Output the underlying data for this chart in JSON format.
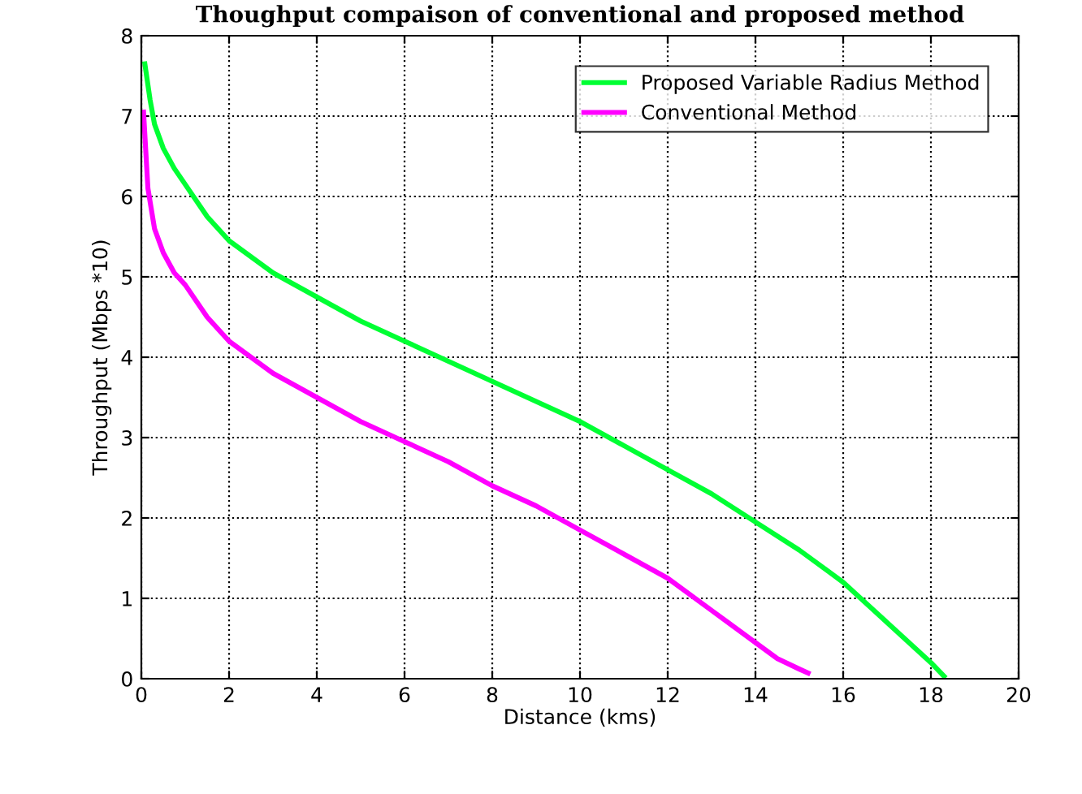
{
  "chart_data": {
    "type": "line",
    "title": "Thoughput compaison of conventional and proposed method",
    "xlabel": "Distance (kms)",
    "ylabel": "Throughput (Mbps *10)",
    "xlim": [
      0,
      20
    ],
    "ylim": [
      0,
      8
    ],
    "xticks": [
      0,
      2,
      4,
      6,
      8,
      10,
      12,
      14,
      16,
      18,
      20
    ],
    "yticks": [
      0,
      1,
      2,
      3,
      4,
      5,
      6,
      7,
      8
    ],
    "grid": true,
    "legend": "top right",
    "marker": "none",
    "series": [
      {
        "name": "Proposed Variable Radius Method",
        "color": "#00ff33",
        "x": [
          0.08,
          0.2,
          0.3,
          0.5,
          0.75,
          1,
          1.5,
          2,
          3,
          4,
          5,
          6,
          7,
          8,
          9,
          10,
          11,
          12,
          13,
          14,
          15,
          16,
          16.5,
          17,
          17.5,
          18,
          18.3
        ],
        "values": [
          7.65,
          7.2,
          6.9,
          6.6,
          6.35,
          6.15,
          5.75,
          5.45,
          5.05,
          4.75,
          4.45,
          4.2,
          3.95,
          3.7,
          3.45,
          3.2,
          2.9,
          2.6,
          2.3,
          1.95,
          1.6,
          1.2,
          0.95,
          0.7,
          0.45,
          0.2,
          0.03
        ]
      },
      {
        "name": "Conventional Method",
        "color": "#ff00ff",
        "x": [
          0.05,
          0.15,
          0.3,
          0.5,
          0.75,
          1,
          1.5,
          2,
          3,
          4,
          5,
          6,
          7,
          8,
          9,
          10,
          11,
          12,
          13,
          14,
          14.5,
          15,
          15.2
        ],
        "values": [
          7.05,
          6.1,
          5.6,
          5.3,
          5.05,
          4.9,
          4.5,
          4.2,
          3.8,
          3.5,
          3.2,
          2.95,
          2.7,
          2.4,
          2.15,
          1.85,
          1.55,
          1.25,
          0.85,
          0.45,
          0.25,
          0.12,
          0.07
        ]
      }
    ]
  }
}
